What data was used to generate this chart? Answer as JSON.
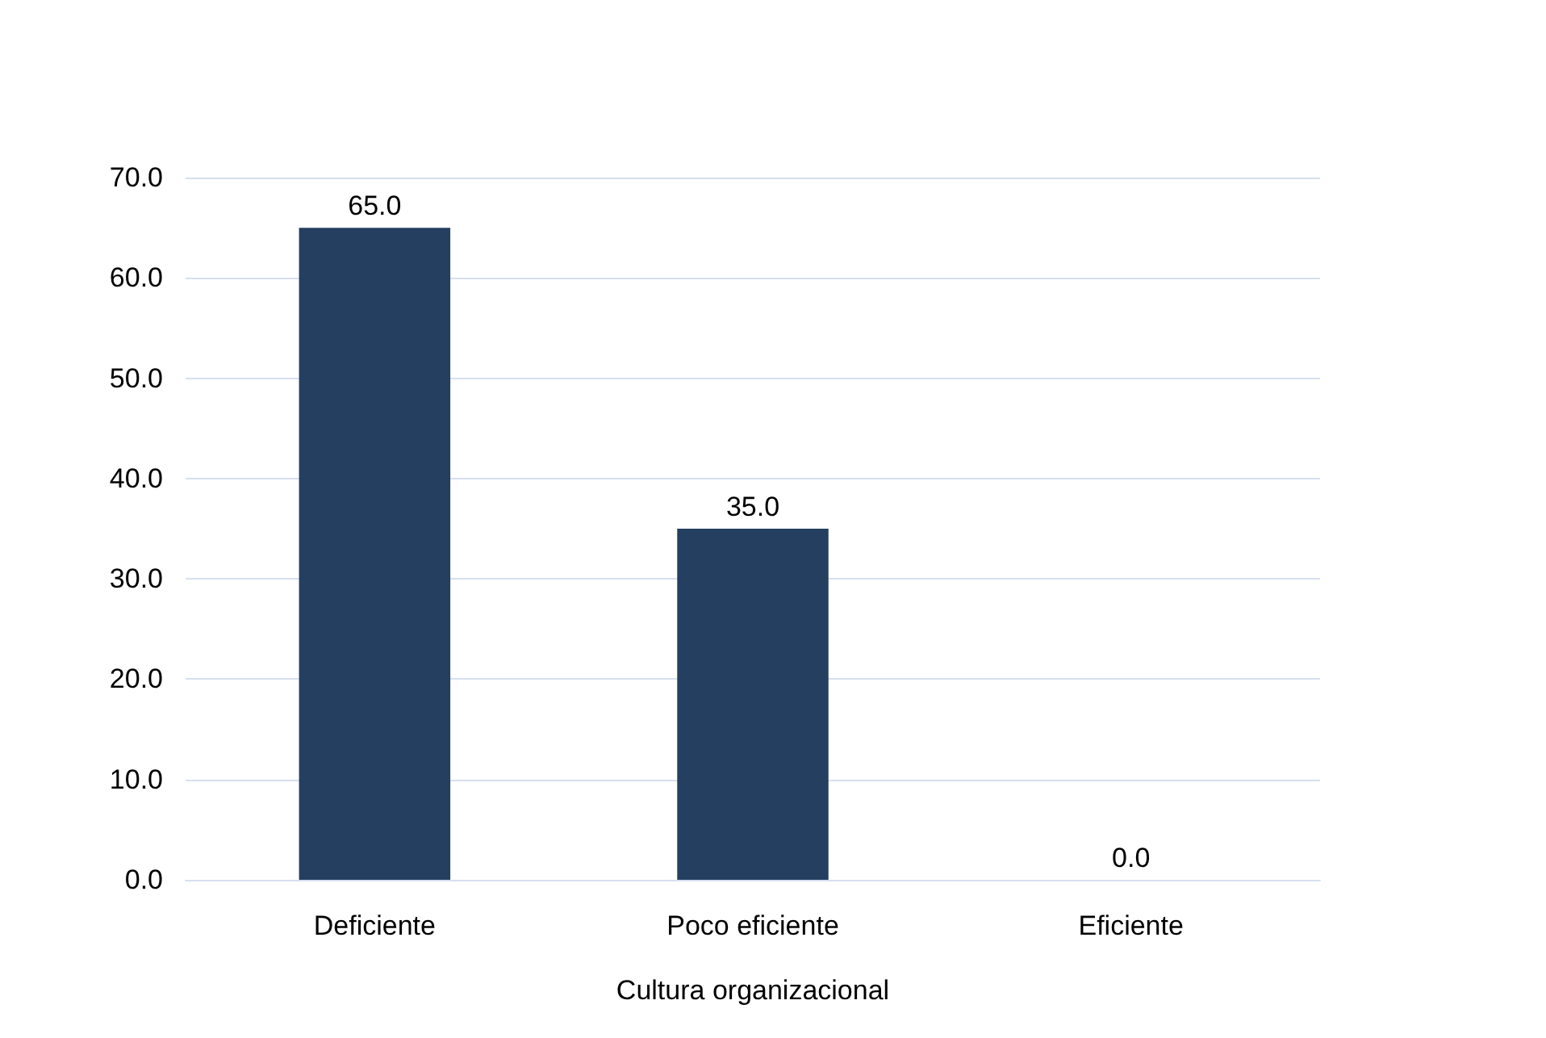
{
  "chart_data": {
    "type": "bar",
    "xlabel": "Cultura organizacional",
    "categories": [
      "Deficiente",
      "Poco eficiente",
      "Eficiente"
    ],
    "values": [
      65,
      35,
      0
    ],
    "value_labels": [
      "65.0",
      "35.0",
      "0.0"
    ],
    "color": "#243f60",
    "ylim": [
      0,
      70
    ],
    "yticks": [
      {
        "value": 0,
        "label": "0.0"
      },
      {
        "value": 10,
        "label": "10.0"
      },
      {
        "value": 20,
        "label": "20.0"
      },
      {
        "value": 30,
        "label": "30.0"
      },
      {
        "value": 40,
        "label": "40.0"
      },
      {
        "value": 50,
        "label": "50.0"
      },
      {
        "value": 60,
        "label": "60.0"
      },
      {
        "value": 70,
        "label": "70.0"
      }
    ],
    "grid": "y"
  }
}
